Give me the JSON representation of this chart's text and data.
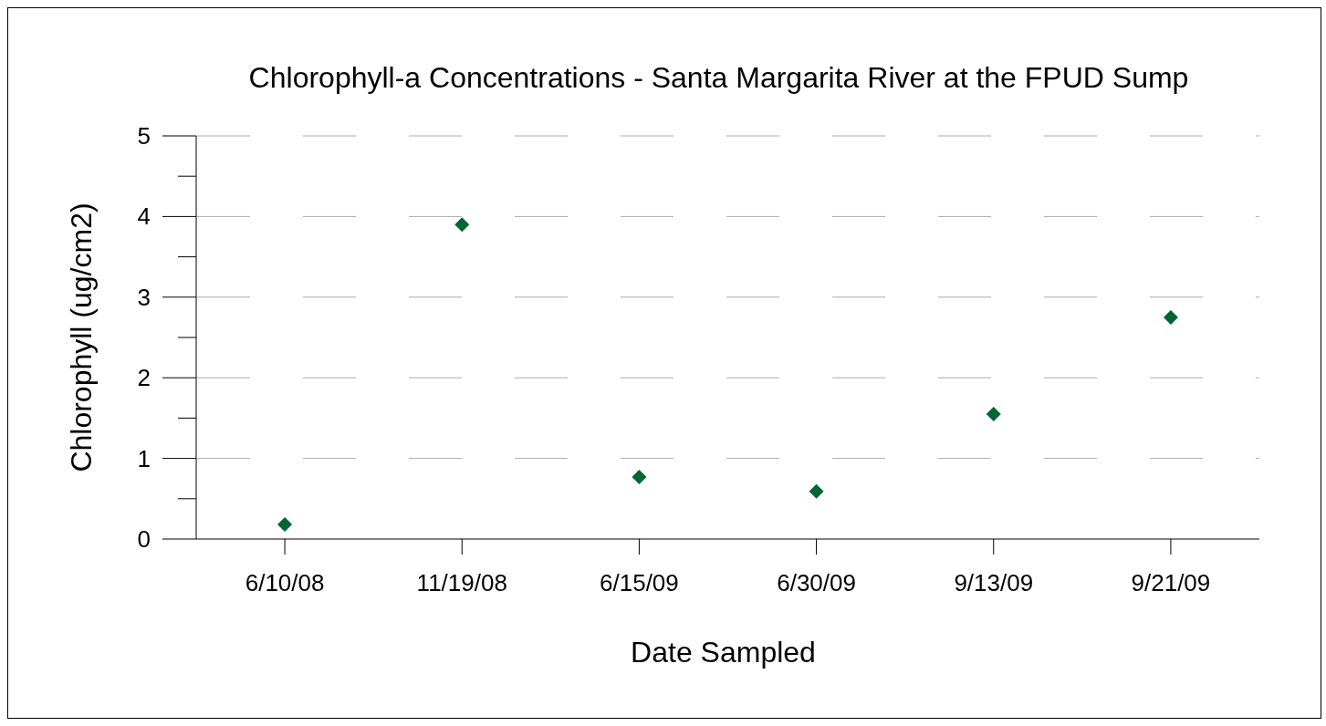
{
  "chart_data": {
    "type": "scatter",
    "title": "Chlorophyll-a Concentrations - Santa Margarita River at the FPUD Sump",
    "xlabel": "Date Sampled",
    "ylabel": "Chlorophyll (ug/cm2)",
    "categories": [
      "6/10/08",
      "11/19/08",
      "6/15/09",
      "6/30/09",
      "9/13/09",
      "9/21/09"
    ],
    "series": [
      {
        "color": "#006633",
        "values": [
          0.18,
          3.9,
          0.77,
          0.59,
          1.55,
          2.75
        ]
      }
    ],
    "ylim": [
      0,
      5
    ],
    "yticks": [
      0,
      1,
      2,
      3,
      4,
      5
    ],
    "grid": "y",
    "marker": "diamond"
  }
}
